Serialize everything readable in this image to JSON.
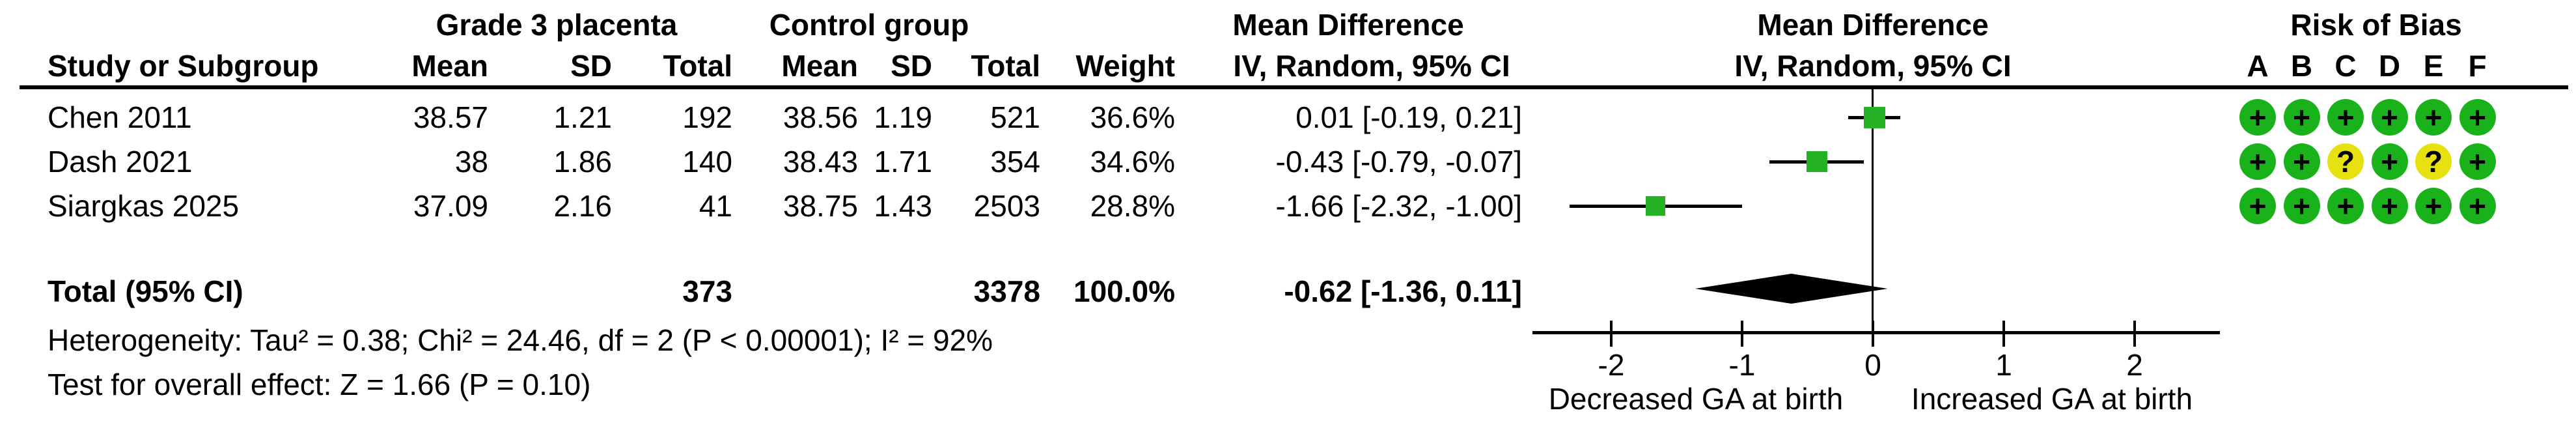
{
  "figure": {
    "header": {
      "group1": "Grade 3 placenta",
      "group2": "Control group",
      "study_col": "Study or Subgroup",
      "sub_cols": [
        "Mean",
        "SD",
        "Total",
        "Mean",
        "SD",
        "Total",
        "Weight"
      ],
      "md_text_col": {
        "line1": "Mean Difference",
        "line2": "IV, Random, 95% CI"
      },
      "md_plot_col": {
        "line1": "Mean Difference",
        "line2": "IV, Random, 95% CI"
      },
      "rob": {
        "title": "Risk of Bias",
        "domains": [
          "A",
          "B",
          "C",
          "D",
          "E",
          "F"
        ]
      }
    },
    "total_row": {
      "label": "Total (95% CI)",
      "total1": "373",
      "total2": "3378",
      "weight": "100.0%",
      "ci_text": "-0.62 [-1.36, 0.11]"
    },
    "footer": {
      "heterogeneity": "Heterogeneity: Tau² = 0.38; Chi² = 24.46, df = 2 (P < 0.00001); I² = 92%",
      "overall": "Test for overall effect: Z = 1.66 (P = 0.10)"
    }
  },
  "chart_data": {
    "type": "scatter",
    "subtype": "forest-plot-mean-difference",
    "effect_measure": "Mean Difference IV, Random, 95% CI",
    "studies": [
      {
        "name": "Chen 2011",
        "mean1": "38.57",
        "sd1": "1.21",
        "total1": "192",
        "mean2": "38.56",
        "sd2": "1.19",
        "total2": "521",
        "weight": "36.6%",
        "weight_pct": 36.6,
        "ci_text": "0.01 [-0.19, 0.21]",
        "estimate": 0.01,
        "ci_low": -0.19,
        "ci_high": 0.21,
        "rob": [
          "+",
          "+",
          "+",
          "+",
          "+",
          "+"
        ]
      },
      {
        "name": "Dash 2021",
        "mean1": "38",
        "sd1": "1.86",
        "total1": "140",
        "mean2": "38.43",
        "sd2": "1.71",
        "total2": "354",
        "weight": "34.6%",
        "weight_pct": 34.6,
        "ci_text": "-0.43 [-0.79, -0.07]",
        "estimate": -0.43,
        "ci_low": -0.79,
        "ci_high": -0.07,
        "rob": [
          "+",
          "+",
          "?",
          "+",
          "?",
          "+"
        ]
      },
      {
        "name": "Siargkas 2025",
        "mean1": "37.09",
        "sd1": "2.16",
        "total1": "41",
        "mean2": "38.75",
        "sd2": "1.43",
        "total2": "2503",
        "weight": "28.8%",
        "weight_pct": 28.8,
        "ci_text": "-1.66 [-2.32, -1.00]",
        "estimate": -1.66,
        "ci_low": -2.32,
        "ci_high": -1.0,
        "rob": [
          "+",
          "+",
          "+",
          "+",
          "+",
          "+"
        ]
      }
    ],
    "total": {
      "estimate": -0.62,
      "ci_low": -1.36,
      "ci_high": 0.11
    },
    "axis": {
      "ticks": [
        "-2",
        "-1",
        "0",
        "1",
        "2"
      ],
      "tick_values": [
        -2,
        -1,
        0,
        1,
        2
      ],
      "xmin": -2.6,
      "xmax": 2.65,
      "left_label": "Decreased GA at birth",
      "right_label": "Increased GA at birth"
    }
  },
  "colors": {
    "square_green": "#24b224",
    "rob_green": "#1ab21a",
    "rob_yellow": "#e8e110",
    "diamond": "#000000",
    "line": "#000000"
  }
}
